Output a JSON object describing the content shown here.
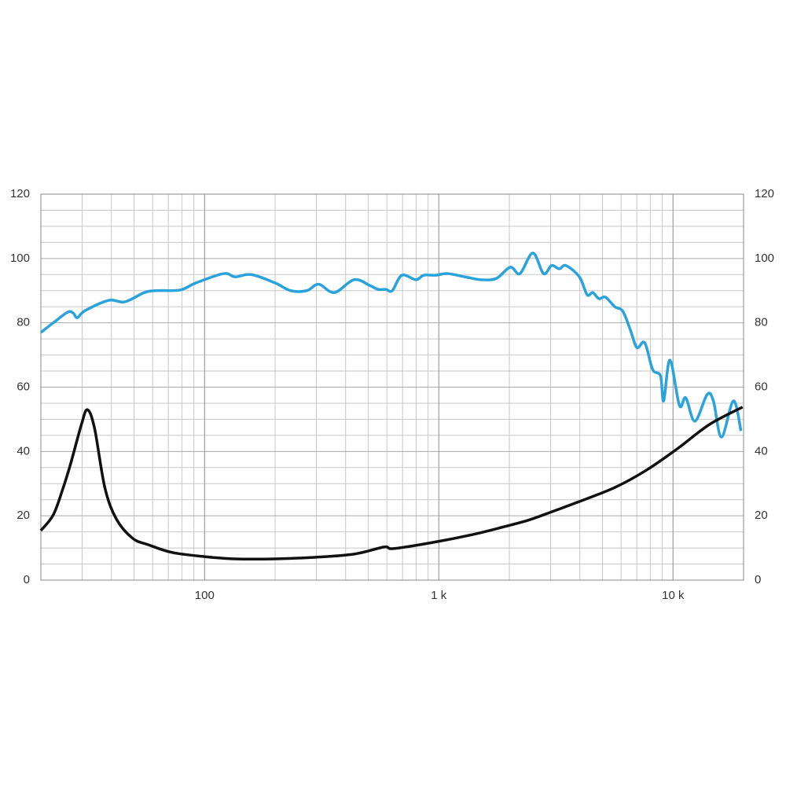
{
  "chart_data": {
    "type": "line",
    "log_x": true,
    "grid": true,
    "minor_grid": true,
    "xlim": [
      20,
      20000
    ],
    "xticks": [
      {
        "value": 100,
        "label": "100"
      },
      {
        "value": 1000,
        "label": "1 k"
      },
      {
        "value": 10000,
        "label": "10 k"
      }
    ],
    "ylim": [
      0,
      120
    ],
    "yticks": [
      0,
      20,
      40,
      60,
      80,
      100,
      120
    ],
    "y2lim": [
      0,
      120
    ],
    "y2ticks": [
      0,
      20,
      40,
      60,
      80,
      100,
      120
    ],
    "series": [
      {
        "color": "#2aa3dc",
        "x": [
          20,
          22.6,
          26,
          27.5,
          28.6,
          30.9,
          39,
          45.6,
          55.3,
          62,
          78.6,
          91.8,
          120.5,
          135,
          158,
          200,
          233,
          273,
          307,
          358,
          435,
          508,
          550,
          594,
          633,
          695,
          798,
          863,
          970,
          1090,
          1290,
          1510,
          1760,
          2020,
          2220,
          2520,
          2800,
          3030,
          3270,
          3490,
          3980,
          4300,
          4540,
          4830,
          5140,
          5640,
          6100,
          6580,
          7010,
          7570,
          8180,
          8840,
          9120,
          9700,
          10650,
          11330,
          12400,
          13980,
          14870,
          16100,
          18100,
          19500
        ],
        "values": [
          77,
          80,
          83.3,
          83,
          81.6,
          83.8,
          87,
          86.5,
          89.4,
          90,
          90.2,
          92.4,
          95.3,
          94.3,
          95,
          92.4,
          90,
          90,
          92,
          89.4,
          93.4,
          91.6,
          90.4,
          90.4,
          90,
          94.8,
          93.4,
          94.8,
          94.8,
          95.3,
          94.3,
          93.4,
          93.8,
          97.3,
          95.3,
          101.7,
          95.3,
          97.8,
          96.8,
          97.8,
          94.3,
          88.7,
          89.4,
          87.5,
          88,
          85,
          83.6,
          77.7,
          72.3,
          73.8,
          65.5,
          63.5,
          55.7,
          68.4,
          54.3,
          56.7,
          49.4,
          57.7,
          55.7,
          44.5,
          55.7,
          46.4
        ]
      },
      {
        "color": "#111111",
        "axis": "y2",
        "x": [
          20,
          22.6,
          24.8,
          26.8,
          29.8,
          31.6,
          33.9,
          37.5,
          42,
          49.3,
          57.5,
          72.7,
          100,
          135,
          200,
          295,
          435,
          584,
          640,
          940,
          1400,
          1900,
          2400,
          2800,
          3840,
          5640,
          7700,
          10500,
          14300,
          19800
        ],
        "values": [
          15.4,
          20.3,
          28.3,
          36.2,
          48.4,
          53,
          47.2,
          28.8,
          19,
          13,
          11,
          8.6,
          7.3,
          6.6,
          6.6,
          7.1,
          8.1,
          10.3,
          9.8,
          11.7,
          14.2,
          16.6,
          18.6,
          20.3,
          24,
          28.8,
          34.2,
          41,
          48.4,
          53.8
        ]
      }
    ]
  }
}
